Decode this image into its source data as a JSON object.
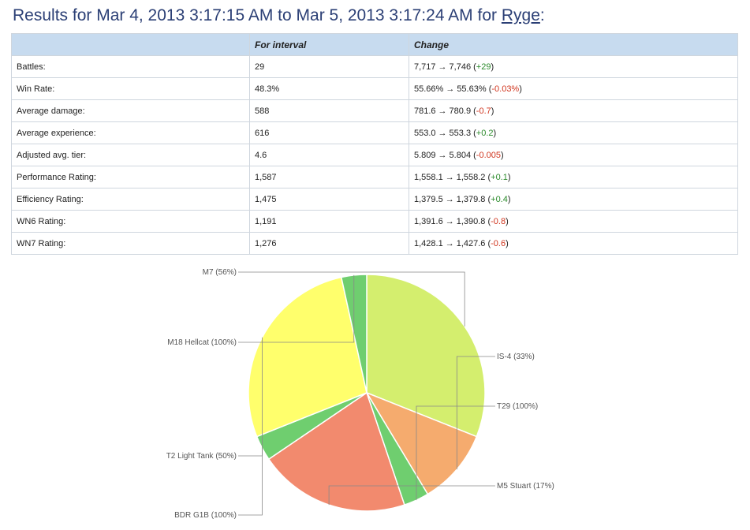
{
  "header": {
    "prefix": "Results for ",
    "from": "Mar 4, 2013 3:17:15 AM",
    "to_word": " to ",
    "to": "Mar 5, 2013 3:17:24 AM",
    "for_word": " for ",
    "player": "Ryge",
    "suffix": ":"
  },
  "table": {
    "columns": [
      "",
      "For interval",
      "Change"
    ],
    "arrow": "→",
    "rows": [
      {
        "label": "Battles:",
        "interval": "29",
        "from": "7,717",
        "to": "7,746",
        "delta": "+29",
        "sign": "pos"
      },
      {
        "label": "Win Rate:",
        "interval": "48.3%",
        "from": "55.66%",
        "to": "55.63%",
        "delta": "-0.03%",
        "sign": "neg"
      },
      {
        "label": "Average damage:",
        "interval": "588",
        "from": "781.6",
        "to": "780.9",
        "delta": "-0.7",
        "sign": "neg"
      },
      {
        "label": "Average experience:",
        "interval": "616",
        "from": "553.0",
        "to": "553.3",
        "delta": "+0.2",
        "sign": "pos"
      },
      {
        "label": "Adjusted avg. tier:",
        "interval": "4.6",
        "from": "5.809",
        "to": "5.804",
        "delta": "-0.005",
        "sign": "neg"
      },
      {
        "label": "Performance Rating:",
        "interval": "1,587",
        "from": "1,558.1",
        "to": "1,558.2",
        "delta": "+0.1",
        "sign": "pos"
      },
      {
        "label": "Efficiency Rating:",
        "interval": "1,475",
        "from": "1,379.5",
        "to": "1,379.8",
        "delta": "+0.4",
        "sign": "pos"
      },
      {
        "label": "WN6 Rating:",
        "interval": "1,191",
        "from": "1,391.6",
        "to": "1,390.8",
        "delta": "-0.8",
        "sign": "neg"
      },
      {
        "label": "WN7 Rating:",
        "interval": "1,276",
        "from": "1,428.1",
        "to": "1,427.6",
        "delta": "-0.6",
        "sign": "neg"
      }
    ]
  },
  "colors": {
    "positive": "#2a8a2a",
    "negative": "#d0351e",
    "header_bg": "#c7dbef"
  },
  "chart_data": {
    "type": "pie",
    "slices": [
      {
        "label": "M7 (56%)",
        "value": 9,
        "color": "#d4ee6e"
      },
      {
        "label": "IS-4 (33%)",
        "value": 3,
        "color": "#f5ab6e"
      },
      {
        "label": "T29 (100%)",
        "value": 1,
        "color": "#6fce6f"
      },
      {
        "label": "M5 Stuart (17%)",
        "value": 6,
        "color": "#f28a6e"
      },
      {
        "label": "BDR G1B (100%)",
        "value": 1,
        "color": "#6fce6f"
      },
      {
        "label": "T2 Light Tank (50%)",
        "value": 8,
        "color": "#ffff6c"
      },
      {
        "label": "M18 Hellcat (100%)",
        "value": 1,
        "color": "#6fce6f"
      }
    ]
  }
}
